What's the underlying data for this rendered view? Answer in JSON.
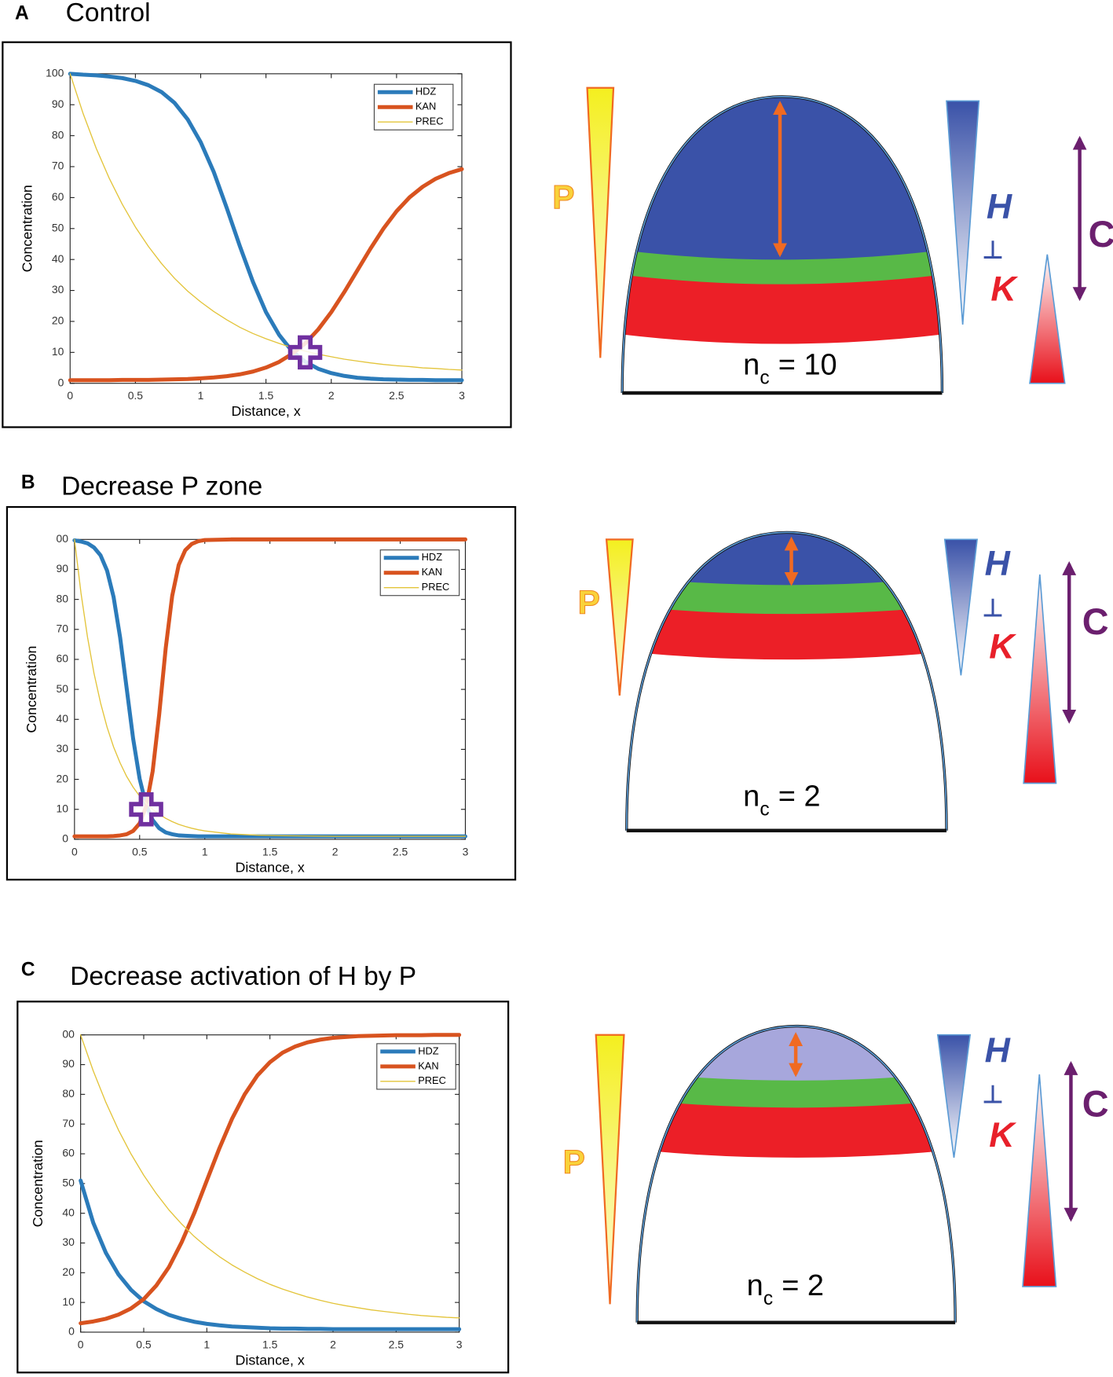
{
  "chart_data": [
    {
      "type": "line",
      "panel": "A",
      "title": "Control",
      "xlabel": "Distance, x",
      "ylabel": "Concentration",
      "xlim": [
        0,
        3
      ],
      "ylim": [
        0,
        100
      ],
      "xticks": [
        0,
        0.5,
        1,
        1.5,
        2,
        2.5,
        3
      ],
      "yticks": [
        0,
        10,
        20,
        30,
        40,
        50,
        60,
        70,
        80,
        90,
        100
      ],
      "legend": "upper right",
      "grid": false,
      "x": [
        0,
        0.1,
        0.2,
        0.3,
        0.4,
        0.5,
        0.6,
        0.7,
        0.8,
        0.9,
        1.0,
        1.1,
        1.2,
        1.3,
        1.4,
        1.5,
        1.6,
        1.7,
        1.8,
        1.9,
        2.0,
        2.1,
        2.2,
        2.3,
        2.4,
        2.5,
        2.6,
        2.7,
        2.8,
        2.9,
        3.0
      ],
      "series": [
        {
          "name": "HDZ",
          "color": "#2b7bba",
          "line_width": 4.5,
          "values": [
            100,
            99.7,
            99.5,
            99.1,
            98.6,
            97.7,
            96.3,
            94.1,
            90.6,
            85.3,
            77.9,
            68.3,
            56.6,
            44.3,
            32.8,
            23.0,
            15.7,
            10.4,
            7.0,
            4.7,
            3.3,
            2.4,
            1.8,
            1.5,
            1.3,
            1.2,
            1.1,
            1.1,
            1.0,
            1.0,
            1.0
          ]
        },
        {
          "name": "KAN",
          "color": "#d8531f",
          "line_width": 4.5,
          "values": [
            1.0,
            1.0,
            1.0,
            1.0,
            1.1,
            1.1,
            1.1,
            1.2,
            1.3,
            1.4,
            1.6,
            1.9,
            2.3,
            2.9,
            3.8,
            5.1,
            6.9,
            9.5,
            12.9,
            17.4,
            23.0,
            29.5,
            36.5,
            43.5,
            50.0,
            55.6,
            60.1,
            63.5,
            66.1,
            67.9,
            69.2
          ]
        },
        {
          "name": "PREC",
          "color": "#e3c43a",
          "line_width": 1.2,
          "values": [
            100,
            87.1,
            75.9,
            66.2,
            57.8,
            50.5,
            44.2,
            38.7,
            33.9,
            29.8,
            26.3,
            23.2,
            20.5,
            18.1,
            16.1,
            14.4,
            12.9,
            11.5,
            10.4,
            9.4,
            8.6,
            7.8,
            7.2,
            6.6,
            6.1,
            5.7,
            5.4,
            5.0,
            4.8,
            4.5,
            4.3
          ]
        }
      ],
      "marker": {
        "x": 1.8,
        "y": 10,
        "color": "#7030a0"
      }
    },
    {
      "type": "line",
      "panel": "B",
      "title": "Decrease P zone",
      "xlabel": "Distance, x",
      "ylabel": "Concentration",
      "xlim": [
        0,
        3
      ],
      "ylim": [
        0,
        100
      ],
      "xticks": [
        0,
        0.5,
        1,
        1.5,
        2,
        2.5,
        3
      ],
      "yticks": [
        0,
        10,
        20,
        30,
        40,
        50,
        60,
        70,
        80,
        90,
        {
          "value": 100,
          "label": "00"
        }
      ],
      "legend": "upper right",
      "grid": false,
      "x": [
        0,
        0.05,
        0.1,
        0.15,
        0.2,
        0.25,
        0.3,
        0.35,
        0.4,
        0.45,
        0.5,
        0.55,
        0.6,
        0.65,
        0.7,
        0.75,
        0.8,
        0.85,
        0.9,
        0.95,
        1.0,
        1.2,
        1.4,
        1.6,
        1.8,
        2.0,
        2.2,
        2.4,
        2.6,
        2.8,
        3.0
      ],
      "series": [
        {
          "name": "HDZ",
          "color": "#2b7bba",
          "line_width": 4.5,
          "values": [
            99.7,
            99.3,
            98.7,
            97.3,
            94.7,
            89.6,
            80.8,
            67.4,
            50.5,
            33.6,
            20.2,
            11.4,
            6.4,
            3.7,
            2.3,
            1.7,
            1.3,
            1.2,
            1.1,
            1.0,
            1.0,
            1.0,
            1.0,
            1.0,
            1.0,
            1.0,
            1.0,
            1.0,
            1.0,
            1.0,
            1.0
          ]
        },
        {
          "name": "KAN",
          "color": "#d8531f",
          "line_width": 4.5,
          "values": [
            1.0,
            1.0,
            1.0,
            1.0,
            1.0,
            1.0,
            1.1,
            1.3,
            1.7,
            2.8,
            5.3,
            11.0,
            22.7,
            41.6,
            63.7,
            81.2,
            91.5,
            96.4,
            98.5,
            99.4,
            99.8,
            100,
            100,
            100,
            100,
            100,
            100,
            100,
            100,
            100,
            100
          ]
        },
        {
          "name": "PREC",
          "color": "#e3c43a",
          "line_width": 1.2,
          "values": [
            100,
            82.1,
            67.4,
            55.3,
            45.5,
            37.4,
            30.8,
            25.5,
            21.0,
            17.4,
            14.4,
            12.0,
            10.0,
            8.4,
            7.0,
            5.9,
            5.0,
            4.3,
            3.7,
            3.2,
            2.8,
            1.8,
            1.4,
            1.2,
            1.1,
            1.0,
            1.0,
            1.0,
            1.0,
            1.0,
            1.0
          ]
        }
      ],
      "marker": {
        "x": 0.55,
        "y": 10,
        "color": "#7030a0"
      }
    },
    {
      "type": "line",
      "panel": "C",
      "title": "Decrease activation of H by P",
      "xlabel": "Distance, x",
      "ylabel": "Concentration",
      "xlim": [
        0,
        3
      ],
      "ylim": [
        0,
        100
      ],
      "xticks": [
        0,
        0.5,
        1,
        1.5,
        2,
        2.5,
        3
      ],
      "yticks": [
        0,
        10,
        20,
        30,
        40,
        50,
        60,
        70,
        80,
        90,
        {
          "value": 100,
          "label": "00"
        }
      ],
      "legend": "upper right",
      "grid": false,
      "x": [
        0,
        0.1,
        0.2,
        0.3,
        0.4,
        0.5,
        0.6,
        0.7,
        0.8,
        0.9,
        1.0,
        1.1,
        1.2,
        1.3,
        1.4,
        1.5,
        1.6,
        1.7,
        1.8,
        1.9,
        2.0,
        2.1,
        2.2,
        2.3,
        2.4,
        2.5,
        2.6,
        2.7,
        2.8,
        2.9,
        3.0
      ],
      "series": [
        {
          "name": "HDZ",
          "color": "#2b7bba",
          "line_width": 4.5,
          "values": [
            51,
            36.8,
            26.7,
            19.4,
            14.2,
            10.4,
            7.8,
            5.8,
            4.5,
            3.5,
            2.8,
            2.3,
            1.9,
            1.7,
            1.5,
            1.3,
            1.2,
            1.2,
            1.1,
            1.1,
            1.0,
            1.0,
            1.0,
            1.0,
            1.0,
            1.0,
            1.0,
            1.0,
            1.0,
            1.0,
            1.0
          ]
        },
        {
          "name": "KAN",
          "color": "#d8531f",
          "line_width": 4.5,
          "values": [
            3.0,
            3.6,
            4.5,
            5.9,
            8.0,
            11.1,
            15.7,
            21.9,
            30.2,
            40.0,
            51.0,
            61.9,
            71.8,
            80.0,
            86.3,
            90.8,
            94.0,
            96.1,
            97.5,
            98.4,
            99.0,
            99.3,
            99.6,
            99.7,
            99.8,
            99.9,
            99.9,
            99.9,
            100,
            100,
            100
          ]
        },
        {
          "name": "PREC",
          "color": "#e3c43a",
          "line_width": 1.2,
          "values": [
            100,
            87.9,
            77.3,
            68.0,
            59.9,
            52.8,
            46.6,
            41.1,
            36.4,
            32.2,
            28.6,
            25.4,
            22.6,
            20.2,
            18.0,
            16.1,
            14.5,
            13.1,
            11.8,
            10.7,
            9.7,
            8.9,
            8.2,
            7.5,
            7.0,
            6.5,
            6.0,
            5.6,
            5.3,
            5.0,
            4.8
          ]
        }
      ]
    }
  ],
  "diagrams": [
    {
      "P": "P",
      "H": "H",
      "inhibit": "⊥",
      "K": "K",
      "C": "C",
      "nc": "n",
      "nc_sub": "c",
      "nc_eq": "= 10",
      "fill": "#3a52a8"
    },
    {
      "P": "P",
      "H": "H",
      "inhibit": "⊥",
      "K": "K",
      "C": "C",
      "nc": "n",
      "nc_sub": "c",
      "nc_eq": "= 2",
      "fill": "#3a52a8"
    },
    {
      "P": "P",
      "H": "H",
      "inhibit": "⊥",
      "K": "K",
      "C": "C",
      "nc": "n",
      "nc_sub": "c",
      "nc_eq": "= 2",
      "fill": "#a7a7dc"
    }
  ]
}
